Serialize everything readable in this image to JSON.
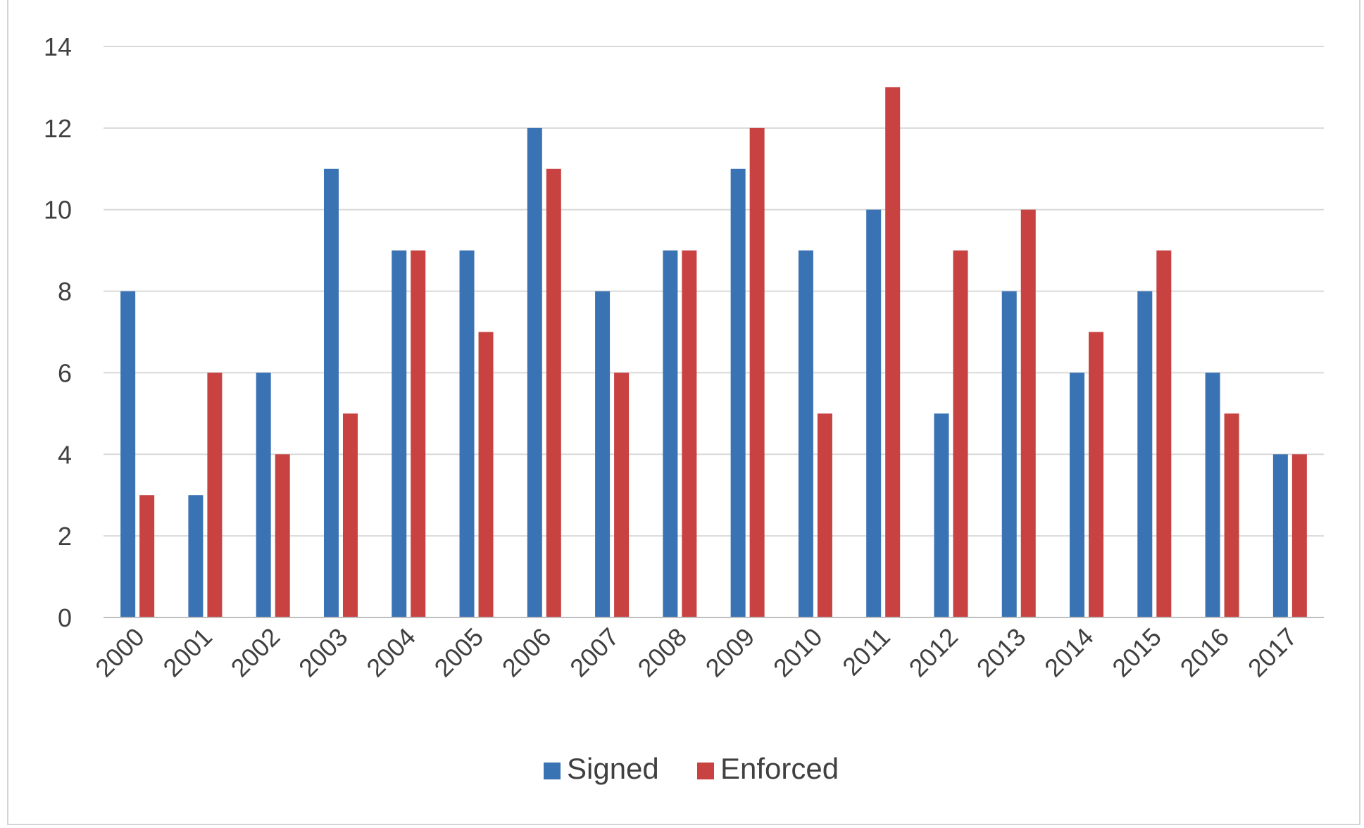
{
  "chart_data": {
    "type": "bar",
    "title": "",
    "xlabel": "",
    "ylabel": "",
    "categories": [
      "2000",
      "2001",
      "2002",
      "2003",
      "2004",
      "2005",
      "2006",
      "2007",
      "2008",
      "2009",
      "2010",
      "2011",
      "2012",
      "2013",
      "2014",
      "2015",
      "2016",
      "2017"
    ],
    "series": [
      {
        "name": "Signed",
        "color": "#3a73b4",
        "values": [
          8,
          3,
          6,
          11,
          9,
          9,
          12,
          8,
          9,
          11,
          9,
          10,
          5,
          8,
          6,
          8,
          6,
          4
        ]
      },
      {
        "name": "Enforced",
        "color": "#c84242",
        "values": [
          3,
          6,
          4,
          5,
          9,
          7,
          11,
          6,
          9,
          12,
          5,
          13,
          9,
          10,
          7,
          9,
          5,
          4
        ]
      }
    ],
    "ylim": [
      0,
      14
    ],
    "yticks": [
      0,
      2,
      4,
      6,
      8,
      10,
      12,
      14
    ],
    "grid": true,
    "legend_position": "bottom"
  }
}
